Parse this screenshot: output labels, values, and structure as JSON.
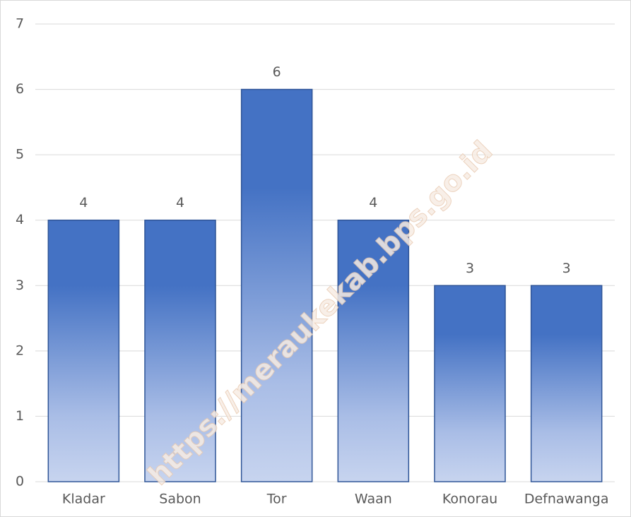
{
  "chart_data": {
    "type": "bar",
    "categories": [
      "Kladar",
      "Sabon",
      "Tor",
      "Waan",
      "Konorau",
      "Defnawanga"
    ],
    "values": [
      4,
      4,
      6,
      4,
      3,
      3
    ],
    "color": "#4472c4",
    "ylim": [
      0,
      7
    ],
    "yticks": [
      0,
      1,
      2,
      3,
      4,
      5,
      6,
      7
    ],
    "grid": true,
    "watermark": "https://meraukekab.bps.go.id"
  }
}
